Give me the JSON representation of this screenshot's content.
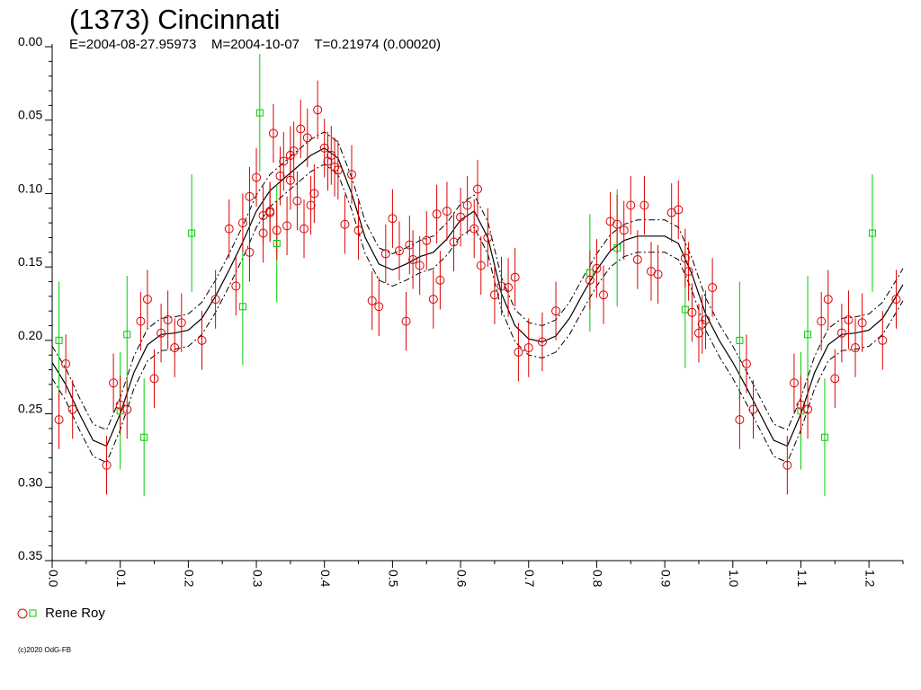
{
  "title": "(1373) Cincinnati",
  "subtitle": "E=2004-08-27.95973    M=2004-10-07    T=0.21974 (0.00020)",
  "legend_label": "Rene Roy",
  "copyright": "(c)2020 OdG-FB",
  "colors": {
    "series_a": "#dd0000",
    "series_b": "#00cc00",
    "curve": "#000000"
  },
  "chart_data": {
    "type": "scatter",
    "title": "(1373) Cincinnati",
    "xlabel": "",
    "ylabel": "",
    "xlim": [
      0.0,
      1.25
    ],
    "ylim": [
      0.35,
      0.0
    ],
    "y_inverted": true,
    "grid": false,
    "legend": "bottom-left",
    "x_ticks": [
      "0.0",
      "0.1",
      "0.2",
      "0.3",
      "0.4",
      "0.5",
      "0.6",
      "0.7",
      "0.8",
      "0.9",
      "1.0",
      "1.1",
      "1.2"
    ],
    "y_ticks": [
      "0.00",
      "0.05",
      "0.10",
      "0.15",
      "0.20",
      "0.25",
      "0.30",
      "0.35"
    ],
    "series": [
      {
        "name": "Rene Roy",
        "marker": "circle",
        "color": "#dd0000",
        "points": [
          [
            0.01,
            0.254,
            0.02
          ],
          [
            0.02,
            0.216,
            0.02
          ],
          [
            0.03,
            0.247,
            0.02
          ],
          [
            0.08,
            0.285,
            0.02
          ],
          [
            0.09,
            0.229,
            0.02
          ],
          [
            0.1,
            0.244,
            0.02
          ],
          [
            0.11,
            0.247,
            0.02
          ],
          [
            0.13,
            0.187,
            0.02
          ],
          [
            0.14,
            0.172,
            0.02
          ],
          [
            0.15,
            0.226,
            0.02
          ],
          [
            0.16,
            0.195,
            0.02
          ],
          [
            0.17,
            0.186,
            0.02
          ],
          [
            0.18,
            0.205,
            0.02
          ],
          [
            0.19,
            0.188,
            0.02
          ],
          [
            0.22,
            0.2,
            0.02
          ],
          [
            0.24,
            0.172,
            0.02
          ],
          [
            0.26,
            0.124,
            0.02
          ],
          [
            0.27,
            0.163,
            0.02
          ],
          [
            0.28,
            0.12,
            0.02
          ],
          [
            0.29,
            0.102,
            0.02
          ],
          [
            0.29,
            0.14,
            0.02
          ],
          [
            0.3,
            0.089,
            0.02
          ],
          [
            0.31,
            0.127,
            0.02
          ],
          [
            0.31,
            0.115,
            0.02
          ],
          [
            0.32,
            0.112,
            0.02
          ],
          [
            0.32,
            0.113,
            0.02
          ],
          [
            0.325,
            0.059,
            0.02
          ],
          [
            0.33,
            0.125,
            0.02
          ],
          [
            0.335,
            0.088,
            0.02
          ],
          [
            0.34,
            0.078,
            0.02
          ],
          [
            0.345,
            0.122,
            0.02
          ],
          [
            0.35,
            0.074,
            0.02
          ],
          [
            0.35,
            0.091,
            0.02
          ],
          [
            0.355,
            0.071,
            0.02
          ],
          [
            0.36,
            0.105,
            0.02
          ],
          [
            0.365,
            0.056,
            0.02
          ],
          [
            0.37,
            0.124,
            0.02
          ],
          [
            0.375,
            0.062,
            0.02
          ],
          [
            0.38,
            0.108,
            0.02
          ],
          [
            0.385,
            0.1,
            0.02
          ],
          [
            0.39,
            0.043,
            0.02
          ],
          [
            0.4,
            0.069,
            0.02
          ],
          [
            0.405,
            0.078,
            0.02
          ],
          [
            0.41,
            0.074,
            0.02
          ],
          [
            0.415,
            0.082,
            0.02
          ],
          [
            0.42,
            0.084,
            0.02
          ],
          [
            0.43,
            0.121,
            0.02
          ],
          [
            0.44,
            0.087,
            0.02
          ],
          [
            0.45,
            0.125,
            0.02
          ],
          [
            0.47,
            0.173,
            0.02
          ],
          [
            0.48,
            0.177,
            0.02
          ],
          [
            0.49,
            0.141,
            0.02
          ],
          [
            0.5,
            0.117,
            0.02
          ],
          [
            0.51,
            0.139,
            0.02
          ],
          [
            0.52,
            0.187,
            0.02
          ],
          [
            0.525,
            0.135,
            0.02
          ],
          [
            0.53,
            0.145,
            0.02
          ],
          [
            0.54,
            0.149,
            0.02
          ],
          [
            0.55,
            0.132,
            0.02
          ],
          [
            0.56,
            0.172,
            0.02
          ],
          [
            0.565,
            0.114,
            0.02
          ],
          [
            0.57,
            0.159,
            0.02
          ],
          [
            0.58,
            0.112,
            0.02
          ],
          [
            0.59,
            0.133,
            0.02
          ],
          [
            0.6,
            0.116,
            0.02
          ],
          [
            0.61,
            0.108,
            0.02
          ],
          [
            0.62,
            0.124,
            0.02
          ],
          [
            0.625,
            0.097,
            0.02
          ],
          [
            0.63,
            0.149,
            0.02
          ],
          [
            0.64,
            0.13,
            0.02
          ],
          [
            0.65,
            0.169,
            0.02
          ],
          [
            0.66,
            0.163,
            0.02
          ],
          [
            0.67,
            0.164,
            0.02
          ],
          [
            0.68,
            0.157,
            0.02
          ],
          [
            0.685,
            0.208,
            0.02
          ],
          [
            0.7,
            0.205,
            0.02
          ],
          [
            0.72,
            0.201,
            0.02
          ],
          [
            0.74,
            0.18,
            0.02
          ],
          [
            0.79,
            0.159,
            0.02
          ],
          [
            0.8,
            0.151,
            0.02
          ],
          [
            0.81,
            0.169,
            0.02
          ],
          [
            0.82,
            0.119,
            0.02
          ],
          [
            0.83,
            0.121,
            0.02
          ],
          [
            0.84,
            0.125,
            0.02
          ],
          [
            0.85,
            0.108,
            0.02
          ],
          [
            0.86,
            0.145,
            0.02
          ],
          [
            0.87,
            0.108,
            0.02
          ],
          [
            0.88,
            0.153,
            0.02
          ],
          [
            0.89,
            0.155,
            0.02
          ],
          [
            0.91,
            0.113,
            0.02
          ],
          [
            0.92,
            0.111,
            0.02
          ],
          [
            0.93,
            0.144,
            0.02
          ],
          [
            0.935,
            0.153,
            0.02
          ],
          [
            0.94,
            0.181,
            0.02
          ],
          [
            0.95,
            0.195,
            0.02
          ],
          [
            0.955,
            0.189,
            0.02
          ],
          [
            0.96,
            0.186,
            0.02
          ],
          [
            0.97,
            0.164,
            0.02
          ],
          [
            1.01,
            0.254,
            0.02
          ],
          [
            1.02,
            0.216,
            0.02
          ],
          [
            1.03,
            0.247,
            0.02
          ],
          [
            1.08,
            0.285,
            0.02
          ],
          [
            1.09,
            0.229,
            0.02
          ],
          [
            1.1,
            0.244,
            0.02
          ],
          [
            1.11,
            0.247,
            0.02
          ],
          [
            1.13,
            0.187,
            0.02
          ],
          [
            1.14,
            0.172,
            0.02
          ],
          [
            1.15,
            0.226,
            0.02
          ],
          [
            1.16,
            0.195,
            0.02
          ],
          [
            1.17,
            0.186,
            0.02
          ],
          [
            1.18,
            0.205,
            0.02
          ],
          [
            1.19,
            0.188,
            0.02
          ],
          [
            1.22,
            0.2,
            0.02
          ],
          [
            1.24,
            0.172,
            0.02
          ]
        ]
      },
      {
        "name": "Rene Roy",
        "marker": "square",
        "color": "#00cc00",
        "points": [
          [
            0.01,
            0.2,
            0.04
          ],
          [
            0.1,
            0.248,
            0.04
          ],
          [
            0.11,
            0.196,
            0.04
          ],
          [
            0.135,
            0.266,
            0.04
          ],
          [
            0.205,
            0.127,
            0.04
          ],
          [
            0.28,
            0.177,
            0.04
          ],
          [
            0.305,
            0.045,
            0.04
          ],
          [
            0.33,
            0.134,
            0.04
          ],
          [
            0.79,
            0.154,
            0.04
          ],
          [
            0.83,
            0.137,
            0.04
          ],
          [
            0.93,
            0.179,
            0.04
          ],
          [
            1.01,
            0.2,
            0.04
          ],
          [
            1.1,
            0.248,
            0.04
          ],
          [
            1.11,
            0.196,
            0.04
          ],
          [
            1.135,
            0.266,
            0.04
          ],
          [
            1.205,
            0.127,
            0.04
          ]
        ]
      }
    ],
    "fit_curve": {
      "x": [
        0.0,
        0.02,
        0.04,
        0.06,
        0.08,
        0.1,
        0.12,
        0.14,
        0.16,
        0.18,
        0.2,
        0.22,
        0.24,
        0.26,
        0.28,
        0.3,
        0.32,
        0.34,
        0.36,
        0.38,
        0.4,
        0.42,
        0.44,
        0.46,
        0.48,
        0.5,
        0.52,
        0.54,
        0.56,
        0.58,
        0.6,
        0.62,
        0.64,
        0.66,
        0.68,
        0.7,
        0.72,
        0.74,
        0.76,
        0.78,
        0.8,
        0.82,
        0.84,
        0.86,
        0.88,
        0.9,
        0.92,
        0.94,
        0.96,
        0.98,
        1.0,
        1.02,
        1.04,
        1.06,
        1.08,
        1.1,
        1.12,
        1.14,
        1.16,
        1.18,
        1.2,
        1.22,
        1.24,
        1.25
      ],
      "y": [
        0.215,
        0.23,
        0.25,
        0.268,
        0.272,
        0.25,
        0.222,
        0.203,
        0.196,
        0.195,
        0.193,
        0.185,
        0.17,
        0.152,
        0.133,
        0.112,
        0.098,
        0.09,
        0.082,
        0.074,
        0.069,
        0.076,
        0.1,
        0.13,
        0.148,
        0.152,
        0.148,
        0.143,
        0.14,
        0.131,
        0.118,
        0.112,
        0.13,
        0.168,
        0.19,
        0.199,
        0.201,
        0.197,
        0.185,
        0.168,
        0.152,
        0.139,
        0.132,
        0.129,
        0.129,
        0.129,
        0.134,
        0.155,
        0.182,
        0.2,
        0.215,
        0.232,
        0.25,
        0.268,
        0.272,
        0.25,
        0.222,
        0.203,
        0.196,
        0.195,
        0.193,
        0.185,
        0.17,
        0.162
      ],
      "band": 0.011
    }
  }
}
